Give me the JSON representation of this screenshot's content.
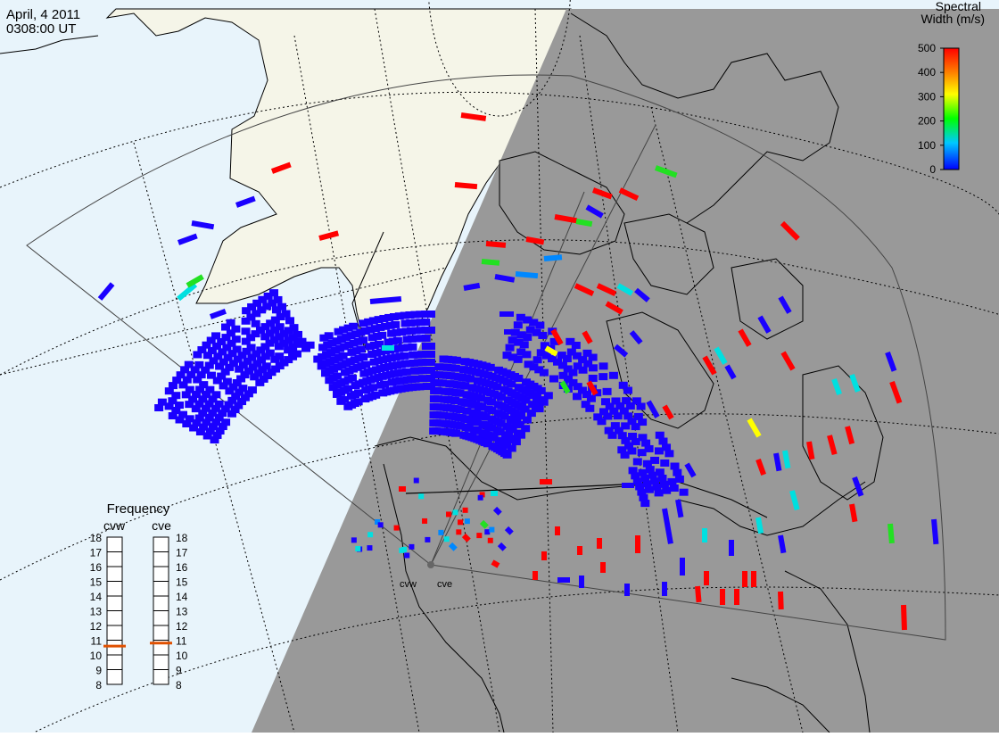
{
  "header": {
    "date": "April, 4 2011",
    "time": "0308:00 UT"
  },
  "colorbar": {
    "title_line1": "Spectral",
    "title_line2": "Width (m/s)",
    "ticks": [
      "500",
      "400",
      "300",
      "200",
      "100",
      "0"
    ],
    "range": [
      0,
      500
    ],
    "palette": [
      "#0000ff",
      "#00c8ff",
      "#00ff00",
      "#ffff00",
      "#ff8000",
      "#ff0000"
    ]
  },
  "radars": {
    "west_label": "cvw",
    "east_label": "cve"
  },
  "frequency": {
    "title": "Frequency",
    "west_label": "cvw",
    "east_label": "cve",
    "ticks": [
      "18",
      "17",
      "16",
      "15",
      "14",
      "13",
      "12",
      "11",
      "10",
      "9",
      "8"
    ],
    "range_mhz": [
      8,
      18
    ],
    "cvw_mhz": 10.6,
    "cve_mhz": 10.8,
    "marker_color": "#e05000"
  },
  "map": {
    "ocean_color": "#e8f4fb",
    "land_color": "#f5f5e8",
    "night_color": "#999999"
  }
}
